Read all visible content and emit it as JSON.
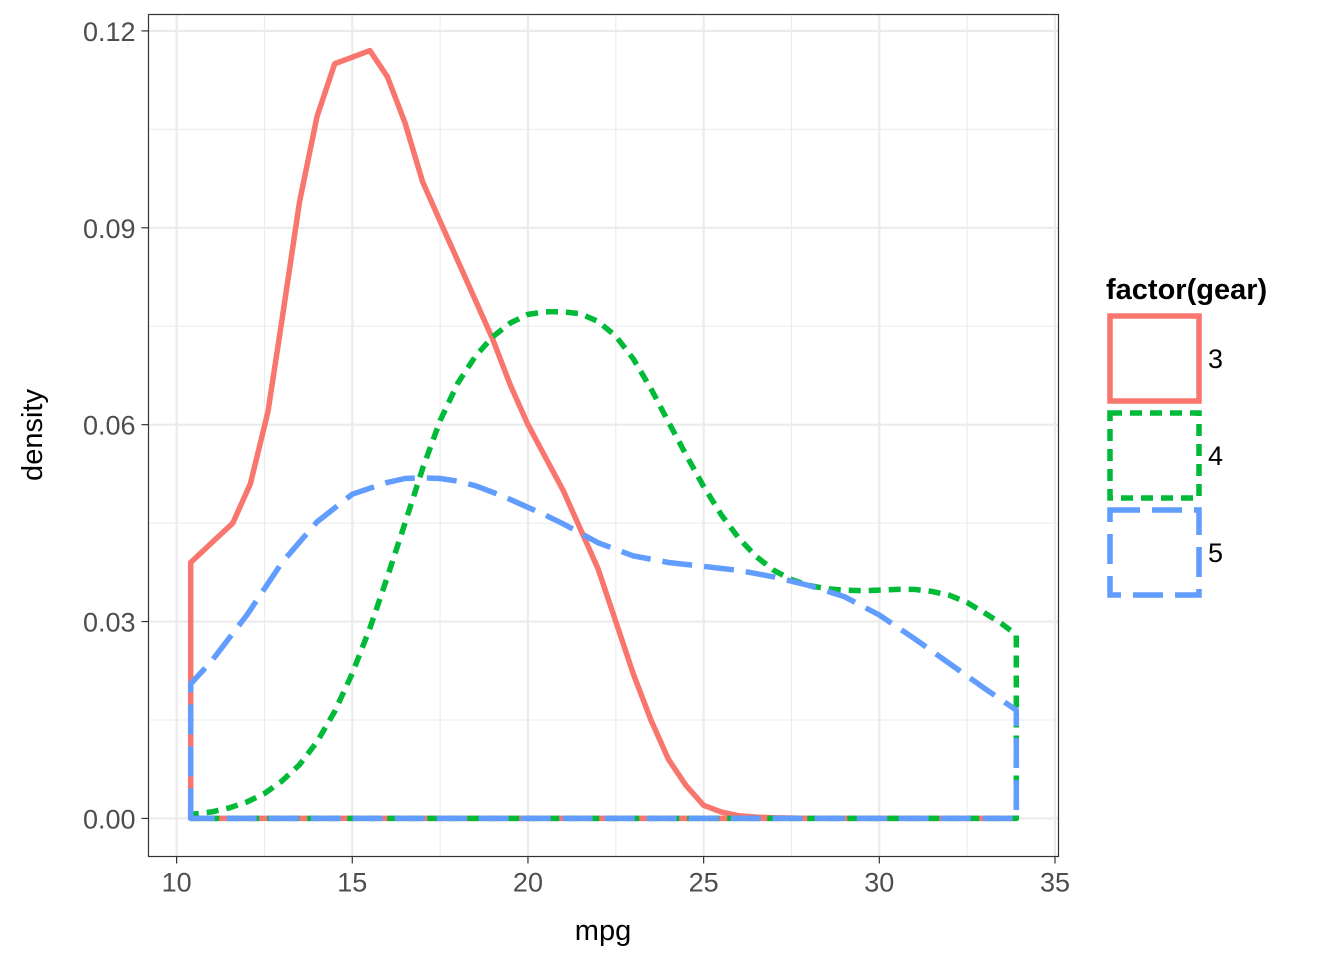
{
  "chart_data": {
    "type": "area",
    "xlabel": "mpg",
    "ylabel": "density",
    "xlim": [
      9.2,
      35.1
    ],
    "ylim": [
      -0.0058,
      0.1225
    ],
    "x_ticks": [
      10,
      15,
      20,
      25,
      30,
      35
    ],
    "y_ticks": [
      0.0,
      0.03,
      0.06,
      0.09,
      0.12
    ],
    "x_tick_labels": [
      "10",
      "15",
      "20",
      "25",
      "30",
      "35"
    ],
    "y_tick_labels": [
      "0.00",
      "0.03",
      "0.06",
      "0.09",
      "0.12"
    ],
    "grid": true,
    "legend": {
      "title": "factor(gear)",
      "position": "right"
    },
    "series": [
      {
        "name": "3",
        "color": "#F8766D",
        "linetype": "solid",
        "x": [
          10.4,
          10.6,
          11.0,
          11.6,
          12.1,
          12.6,
          13.0,
          13.5,
          14.0,
          14.5,
          15.0,
          15.5,
          16.0,
          16.5,
          17.0,
          17.5,
          18.0,
          18.5,
          19.0,
          19.5,
          20.0,
          20.5,
          21.0,
          21.5,
          22.0,
          22.5,
          23.0,
          23.5,
          24.0,
          24.5,
          25.0,
          25.5,
          26.0,
          26.5,
          27.0,
          28.0,
          30.0,
          32.0,
          33.9
        ],
        "values": [
          0.039,
          0.04,
          0.042,
          0.045,
          0.051,
          0.062,
          0.076,
          0.094,
          0.107,
          0.115,
          0.116,
          0.117,
          0.113,
          0.106,
          0.097,
          0.091,
          0.085,
          0.079,
          0.073,
          0.066,
          0.06,
          0.055,
          0.05,
          0.044,
          0.038,
          0.03,
          0.022,
          0.015,
          0.009,
          0.005,
          0.002,
          0.001,
          0.0004,
          0.0002,
          0.0001,
          0.0,
          0.0,
          0.0,
          0.0
        ]
      },
      {
        "name": "4",
        "color": "#00BA38",
        "linetype": "dashed",
        "x": [
          10.4,
          11.0,
          11.5,
          12.0,
          12.5,
          13.0,
          13.5,
          14.0,
          14.5,
          15.0,
          15.5,
          16.0,
          16.5,
          17.0,
          17.5,
          18.0,
          18.5,
          19.0,
          19.5,
          20.0,
          20.5,
          21.0,
          21.5,
          22.0,
          22.5,
          23.0,
          23.5,
          24.0,
          24.5,
          25.0,
          25.5,
          26.0,
          26.5,
          27.0,
          27.5,
          28.0,
          28.5,
          29.0,
          29.5,
          30.0,
          30.5,
          31.0,
          31.5,
          32.0,
          32.5,
          33.0,
          33.5,
          33.9
        ],
        "values": [
          0.0006,
          0.001,
          0.0016,
          0.0025,
          0.0038,
          0.0057,
          0.0082,
          0.0117,
          0.0163,
          0.0221,
          0.029,
          0.0368,
          0.045,
          0.0533,
          0.0606,
          0.0663,
          0.0704,
          0.0734,
          0.0755,
          0.0768,
          0.0772,
          0.0772,
          0.0769,
          0.0757,
          0.0735,
          0.07,
          0.0655,
          0.0604,
          0.0554,
          0.0506,
          0.0463,
          0.0427,
          0.0399,
          0.0378,
          0.0364,
          0.0355,
          0.035,
          0.0348,
          0.0347,
          0.0348,
          0.0349,
          0.0349,
          0.0346,
          0.034,
          0.0329,
          0.0313,
          0.0296,
          0.028
        ]
      },
      {
        "name": "5",
        "color": "#619CFF",
        "linetype": "longdash",
        "x": [
          10.4,
          11.0,
          12.0,
          13.0,
          14.0,
          15.0,
          16.0,
          16.5,
          17.0,
          17.5,
          18.0,
          18.5,
          19.0,
          19.5,
          20.0,
          20.5,
          21.0,
          22.0,
          23.0,
          24.0,
          25.0,
          26.0,
          27.0,
          28.0,
          29.0,
          30.0,
          31.0,
          32.0,
          33.0,
          33.9
        ],
        "values": [
          0.0205,
          0.024,
          0.031,
          0.039,
          0.0452,
          0.0494,
          0.0512,
          0.0518,
          0.0519,
          0.0518,
          0.0514,
          0.0507,
          0.0497,
          0.0486,
          0.0474,
          0.0462,
          0.0449,
          0.042,
          0.04,
          0.039,
          0.0384,
          0.0378,
          0.0368,
          0.0355,
          0.0338,
          0.031,
          0.0274,
          0.0236,
          0.0198,
          0.0165
        ]
      }
    ]
  }
}
